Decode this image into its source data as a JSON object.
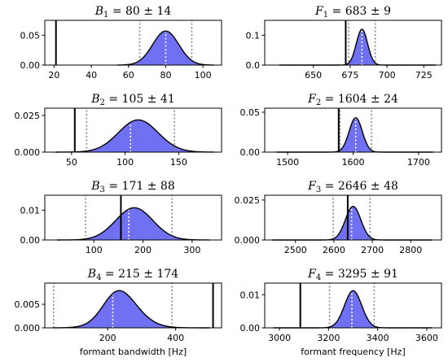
{
  "chart_data": [
    {
      "type": "area",
      "title": {
        "sym": "B",
        "sub": "1",
        "rest": " = 80 ± 14"
      },
      "xlabel": "",
      "xlim": [
        15,
        110
      ],
      "xticks": [
        "20",
        "40",
        "60",
        "80",
        "100"
      ],
      "xtick_values": [
        20,
        40,
        60,
        80,
        100
      ],
      "ylim": [
        0,
        0.075
      ],
      "yticks": [
        "0.00",
        "0.05"
      ],
      "ytick_values": [
        0,
        0.05
      ],
      "distribution": {
        "mean": 80,
        "sd": 7,
        "skew": 0,
        "peak": 0.057,
        "x_range": [
          54,
          106
        ]
      },
      "true_value": 21,
      "interval": [
        66,
        94
      ],
      "median": 80
    },
    {
      "type": "area",
      "title": {
        "sym": "F",
        "sub": "1",
        "rest": " = 683 ± 9"
      },
      "xlabel": "",
      "xlim": [
        617,
        737
      ],
      "xticks": [
        "650",
        "675",
        "700",
        "725"
      ],
      "xtick_values": [
        650,
        675,
        700,
        725
      ],
      "ylim": [
        0,
        0.15
      ],
      "yticks": [
        "0.0",
        "0.1"
      ],
      "ytick_values": [
        0,
        0.1
      ],
      "distribution": {
        "mean": 683,
        "sd": 3.8,
        "skew": 0,
        "peak": 0.12,
        "x_range": [
          627,
          733
        ]
      },
      "true_value": 672,
      "interval": [
        674,
        692
      ],
      "median": 683
    },
    {
      "type": "area",
      "title": {
        "sym": "B",
        "sub": "2",
        "rest": " = 105 ± 41"
      },
      "xlabel": "",
      "xlim": [
        25,
        190
      ],
      "xticks": [
        "50",
        "100",
        "150"
      ],
      "xtick_values": [
        50,
        100,
        150
      ],
      "ylim": [
        0,
        0.03
      ],
      "yticks": [
        "0.000",
        "0.025"
      ],
      "ytick_values": [
        0,
        0.025
      ],
      "distribution": {
        "mean": 105,
        "sd": 20,
        "skew": 0.5,
        "peak": 0.022,
        "x_range": [
          35,
          183
        ]
      },
      "true_value": 53,
      "interval": [
        64,
        146
      ],
      "median": 105
    },
    {
      "type": "area",
      "title": {
        "sym": "F",
        "sub": "2",
        "rest": " = 1604 ± 24"
      },
      "xlabel": "",
      "xlim": [
        1465,
        1735
      ],
      "xticks": [
        "1500",
        "1600",
        "1700"
      ],
      "xtick_values": [
        1500,
        1600,
        1700
      ],
      "ylim": [
        0,
        0.055
      ],
      "yticks": [
        "0.00",
        "0.05"
      ],
      "ytick_values": [
        0,
        0.05
      ],
      "distribution": {
        "mean": 1604,
        "sd": 10,
        "skew": 0,
        "peak": 0.043,
        "x_range": [
          1483,
          1722
        ]
      },
      "true_value": 1578,
      "interval": [
        1580,
        1628
      ],
      "median": 1604
    },
    {
      "type": "area",
      "title": {
        "sym": "B",
        "sub": "3",
        "rest": " = 171 ± 88"
      },
      "xlabel": "",
      "xlim": [
        0,
        360
      ],
      "xticks": [
        "100",
        "200",
        "300"
      ],
      "xtick_values": [
        100,
        200,
        300
      ],
      "ylim": [
        0,
        0.015
      ],
      "yticks": [
        "0.00",
        "0.01"
      ],
      "ytick_values": [
        0,
        0.01
      ],
      "distribution": {
        "mean": 170,
        "sd": 40,
        "skew": 0.4,
        "peak": 0.0108,
        "x_range": [
          25,
          335
        ]
      },
      "true_value": 155,
      "interval": [
        83,
        259
      ],
      "median": 171
    },
    {
      "type": "area",
      "title": {
        "sym": "F",
        "sub": "3",
        "rest": " = 2646 ± 48"
      },
      "xlabel": "",
      "xlim": [
        2420,
        2880
      ],
      "xticks": [
        "2500",
        "2600",
        "2700",
        "2800"
      ],
      "xtick_values": [
        2500,
        2600,
        2700,
        2800
      ],
      "ylim": [
        0,
        0.028
      ],
      "yticks": [
        "0.000",
        "0.025"
      ],
      "ytick_values": [
        0,
        0.025
      ],
      "distribution": {
        "mean": 2650,
        "sd": 20,
        "skew": 0,
        "peak": 0.021,
        "x_range": [
          2440,
          2855
        ]
      },
      "true_value": 2636,
      "interval": [
        2598,
        2694
      ],
      "median": 2646
    },
    {
      "type": "area",
      "title": {
        "sym": "B",
        "sub": "4",
        "rest": " = 215 ± 174"
      },
      "xlabel": "formant bandwidth [Hz]",
      "xlim": [
        15,
        535
      ],
      "xticks": [
        "200",
        "400"
      ],
      "xtick_values": [
        200,
        400
      ],
      "ylim": [
        0,
        0.0095
      ],
      "yticks": [
        "0.000",
        "0.005"
      ],
      "ytick_values": [
        0,
        0.005
      ],
      "distribution": {
        "mean": 200,
        "sd": 65,
        "skew": 1.2,
        "peak": 0.0079,
        "x_range": [
          40,
          500
        ]
      },
      "true_value": 510,
      "interval": [
        41,
        389
      ],
      "median": 215
    },
    {
      "type": "area",
      "title": {
        "sym": "F",
        "sub": "4",
        "rest": " = 3295 ± 91"
      },
      "xlabel": "formant frequency [Hz]",
      "xlim": [
        2940,
        3660
      ],
      "xticks": [
        "3000",
        "3200",
        "3400",
        "3600"
      ],
      "xtick_values": [
        3000,
        3200,
        3400,
        3600
      ],
      "ylim": [
        0,
        0.0135
      ],
      "yticks": [
        "0.00",
        "0.01"
      ],
      "ytick_values": [
        0,
        0.01
      ],
      "distribution": {
        "mean": 3300,
        "sd": 35,
        "skew": 0,
        "peak": 0.0112,
        "x_range": [
          2975,
          3620
        ]
      },
      "true_value": 3085,
      "interval": [
        3204,
        3386
      ],
      "median": 3295
    }
  ],
  "colors": {
    "fill": "#7070f2",
    "curve": "#000000",
    "dotted": "#888888",
    "truth": "#000000",
    "axes": "#000000"
  }
}
